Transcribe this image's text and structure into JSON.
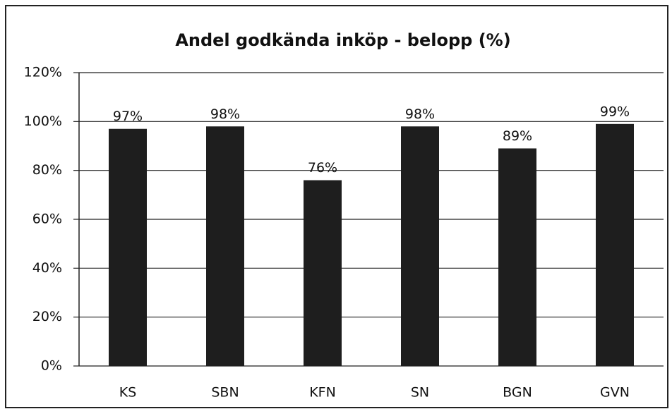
{
  "chart_data": {
    "type": "bar",
    "title": "Andel godkända inköp - belopp (%)",
    "categories": [
      "KS",
      "SBN",
      "KFN",
      "SN",
      "BGN",
      "GVN"
    ],
    "values": [
      97,
      98,
      76,
      98,
      89,
      99
    ],
    "value_labels": [
      "97%",
      "98%",
      "76%",
      "98%",
      "89%",
      "99%"
    ],
    "color": "#1e1e1e",
    "ylim": [
      0,
      120
    ],
    "yticks": [
      {
        "value": 0,
        "label": "0%"
      },
      {
        "value": 20,
        "label": "20%"
      },
      {
        "value": 40,
        "label": "40%"
      },
      {
        "value": 60,
        "label": "60%"
      },
      {
        "value": 80,
        "label": "80%"
      },
      {
        "value": 100,
        "label": "100%"
      },
      {
        "value": 120,
        "label": "120%"
      }
    ],
    "grid": true
  }
}
